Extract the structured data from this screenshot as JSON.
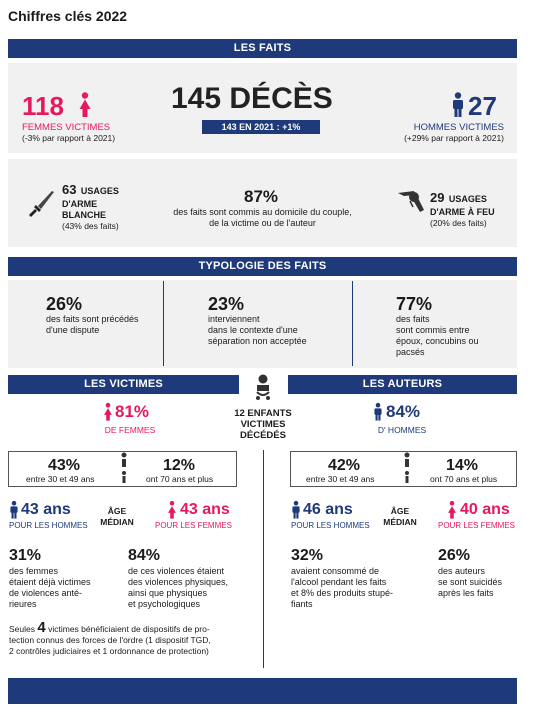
{
  "header": {
    "title": "Chiffres clés 2022"
  },
  "faits": {
    "bar_label": "LES FAITS",
    "deces_title": "145 DÉCÈS",
    "deces_2021": "143 EN 2021 : +1%",
    "femmes_value": "118",
    "femmes_label": "FEMMES VICTIMES",
    "femmes_change": "(-3% par rapport à 2021)",
    "hommes_value": "27",
    "hommes_label": "HOMMES VICTIMES",
    "hommes_change": "(+29% par rapport à 2021)",
    "arme_blanche_count": "63",
    "arme_blanche_l1": "USAGES",
    "arme_blanche_l2": "D'ARME",
    "arme_blanche_l3": "BLANCHE",
    "arme_blanche_pct": "(43% des faits)",
    "domicile_pct": "87%",
    "domicile_l1": "des faits sont commis au domicile du couple,",
    "domicile_l2": "de la victime ou de l'auteur",
    "arme_feu_count": "29",
    "arme_feu_l1": "USAGES",
    "arme_feu_l2": "D'ARME À FEU",
    "arme_feu_pct": "(20% des faits)"
  },
  "typologie": {
    "bar_label": "TYPOLOGIE DES FAITS",
    "items": [
      {
        "pct": "26%",
        "lines": [
          "des faits sont précédés",
          "d'une dispute"
        ]
      },
      {
        "pct": "23%",
        "lines": [
          "interviennent",
          "dans le contexte d'une",
          "séparation non acceptée"
        ]
      },
      {
        "pct": "77%",
        "lines": [
          "des faits",
          "sont commis entre",
          "époux, concubins ou",
          "pacsés"
        ]
      }
    ]
  },
  "enfants": {
    "l1": "12 ENFANTS",
    "l2": "VICTIMES",
    "l3": "DÉCÉDÉS"
  },
  "victimes": {
    "bar_label": "LES VICTIMES",
    "pct": "81%",
    "pct_label": "DE FEMMES",
    "age1_pct": "43%",
    "age1_label": "entre 30 et 49 ans",
    "age2_pct": "12%",
    "age2_label": "ont 70 ans et plus",
    "age_h": "43 ans",
    "age_h_label": "POUR LES HOMMES",
    "age_mid1": "ÂGE",
    "age_mid2": "MÉDIAN",
    "age_f": "43 ans",
    "age_f_label": "POUR LES FEMMES",
    "s1_pct": "31%",
    "s1_lines": [
      "des femmes",
      "étaient déjà victimes",
      "de violences anté-",
      "rieures"
    ],
    "s2_pct": "84%",
    "s2_lines": [
      "de ces violences étaient",
      "des violences physiques,",
      "ainsi que physiques",
      "et psychologiques"
    ],
    "foot_pre": "Seules",
    "foot_num": "4",
    "foot_l1": "victimes bénéficiaient de dispositifs de pro-",
    "foot_l2": "tection connus des forces de l'ordre (1 dispositif TGD,",
    "foot_l3": "2 contrôles judiciaires et 1 ordonnance de protection)"
  },
  "auteurs": {
    "bar_label": "LES AUTEURS",
    "pct": "84%",
    "pct_label": "D' HOMMES",
    "age1_pct": "42%",
    "age1_label": "entre 30 et 49 ans",
    "age2_pct": "14%",
    "age2_label": "ont 70 ans et plus",
    "age_h": "46 ans",
    "age_h_label": "POUR LES HOMMES",
    "age_mid1": "ÂGE",
    "age_mid2": "MÉDIAN",
    "age_f": "40 ans",
    "age_f_label": "POUR LES FEMMES",
    "s1_pct": "32%",
    "s1_lines": [
      "avaient consommé de",
      "l'alcool pendant les faits",
      "et 8% des produits stupé-",
      "fiants"
    ],
    "s2_pct": "26%",
    "s2_lines": [
      "des auteurs",
      "se sont suicidés",
      "après les faits"
    ]
  },
  "colors": {
    "navy": "#1f3a7a",
    "pink": "#e6195c",
    "gray": "#f1f1f1"
  }
}
